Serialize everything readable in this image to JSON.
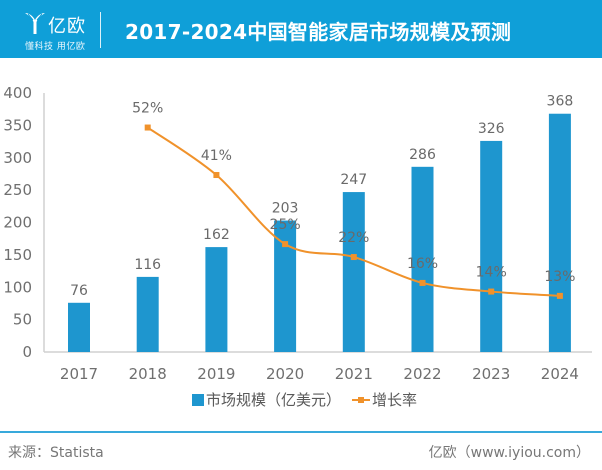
{
  "header": {
    "logo_name": "亿欧",
    "logo_slogan": "懂科技 用亿欧",
    "title": "2017-2024中国智能家居市场规模及预测"
  },
  "colors": {
    "header_bg": "#0f9fd8",
    "bar": "#1e96cf",
    "line": "#f0922b"
  },
  "chart_data": {
    "type": "bar+line",
    "title": "2017-2024中国智能家居市场规模及预测",
    "categories": [
      "2017",
      "2018",
      "2019",
      "2020",
      "2021",
      "2022",
      "2023",
      "2024"
    ],
    "series": [
      {
        "name": "市场规模（亿美元）",
        "type": "bar",
        "axis": "left",
        "values": [
          76,
          116,
          162,
          203,
          247,
          286,
          326,
          368
        ],
        "labels": [
          "76",
          "116",
          "162",
          "203",
          "247",
          "286",
          "326",
          "368"
        ]
      },
      {
        "name": "增长率",
        "type": "line",
        "axis": "secondary-hidden",
        "smooth": true,
        "values": [
          null,
          52,
          41,
          25,
          22,
          16,
          14,
          13
        ],
        "labels": [
          "",
          "52%",
          "41%",
          "25%",
          "22%",
          "16%",
          "14%",
          "13%"
        ]
      }
    ],
    "y_ticks": [
      "0",
      "50",
      "100",
      "150",
      "200",
      "250",
      "300",
      "350",
      "400"
    ],
    "ylim": [
      0,
      400
    ],
    "secondary_ylim_percent": [
      0,
      60
    ],
    "xlabel": "",
    "ylabel": "",
    "grid": false,
    "legend": {
      "position": "bottom",
      "items": [
        "市场规模（亿美元）",
        "增长率"
      ]
    }
  },
  "footer": {
    "source": "来源：Statista",
    "site": "亿欧（www.iyiou.com）"
  }
}
